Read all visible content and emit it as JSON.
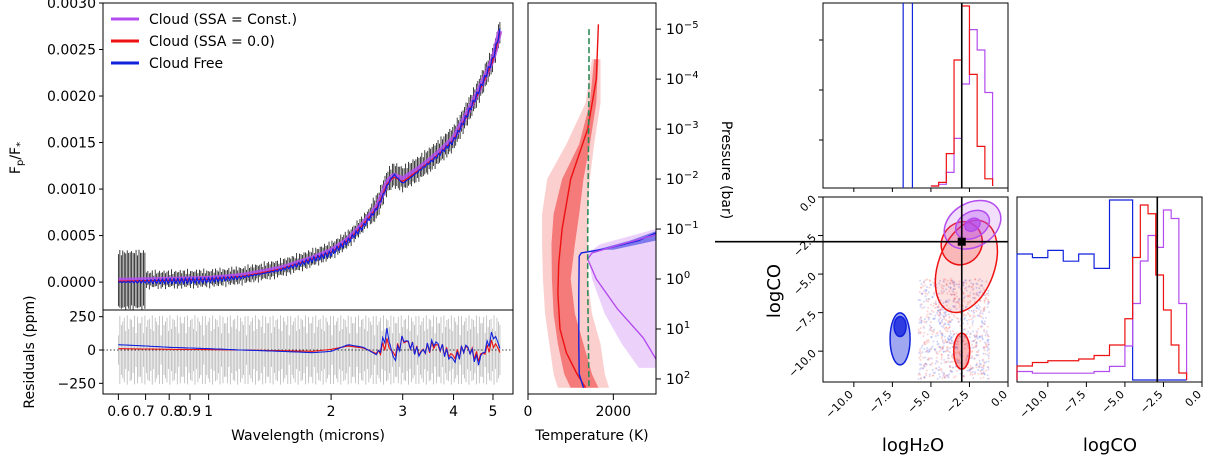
{
  "colors": {
    "ssa_const": "#b44cf0",
    "ssa_zero": "#ee1111",
    "cloud_free": "#1122dd",
    "errorbar": "#111111",
    "resid_err": "#b8b8b8",
    "equilibrium": "#2e8b57"
  },
  "chart_data": [
    {
      "panel": "spectrum",
      "type": "line",
      "xlabel": "Wavelength (microns)",
      "ylabel": "Fp/F*",
      "x_scale": "log",
      "xlim": [
        0.55,
        5.6
      ],
      "ylim": [
        -0.0003,
        0.003
      ],
      "yticks": [
        "0.0000",
        "0.0005",
        "0.0010",
        "0.0015",
        "0.0020",
        "0.0025",
        "0.0030"
      ],
      "x_ticks": [
        "0.6",
        "0.7",
        "0.8",
        "0.9",
        "1",
        "2",
        "3",
        "4",
        "5"
      ],
      "legend": {
        "placement": "upper-left",
        "entries": [
          "Cloud (SSA = Const.)",
          "Cloud (SSA = 0.0)",
          "Cloud Free"
        ]
      },
      "x": [
        0.6,
        0.8,
        1.0,
        1.2,
        1.5,
        1.8,
        2.0,
        2.2,
        2.4,
        2.6,
        2.75,
        2.85,
        3.0,
        3.3,
        3.6,
        4.0,
        4.3,
        4.6,
        5.0,
        5.2
      ],
      "series": [
        {
          "name": "Cloud (SSA = Const.)",
          "values": [
            2e-05,
            3e-05,
            4e-05,
            7e-05,
            0.00015,
            0.00026,
            0.00034,
            0.00046,
            0.00063,
            0.00082,
            0.00108,
            0.00115,
            0.00111,
            0.00123,
            0.00136,
            0.00155,
            0.0018,
            0.00205,
            0.0024,
            0.0027
          ]
        },
        {
          "name": "Cloud (SSA = 0.0)",
          "values": [
            1e-05,
            2e-05,
            3e-05,
            6e-05,
            0.00014,
            0.00025,
            0.00032,
            0.00045,
            0.00062,
            0.00081,
            0.00106,
            0.00113,
            0.00108,
            0.00121,
            0.00134,
            0.00153,
            0.00178,
            0.00203,
            0.00238,
            0.00268
          ]
        },
        {
          "name": "Cloud Free",
          "values": [
            0.0,
            1e-05,
            2e-05,
            5e-05,
            0.00013,
            0.00024,
            0.00031,
            0.00044,
            0.0006,
            0.0008,
            0.00104,
            0.00116,
            0.00106,
            0.0012,
            0.00133,
            0.00152,
            0.00178,
            0.00204,
            0.0024,
            0.0027
          ]
        }
      ]
    },
    {
      "panel": "residuals",
      "type": "line",
      "xlabel": "Wavelength (microns)",
      "ylabel": "Residuals (ppm)",
      "x_scale": "log",
      "ylim": [
        -330,
        320
      ],
      "yticks": [
        "250",
        "0",
        "−250"
      ],
      "x": [
        0.6,
        0.8,
        1.0,
        1.2,
        1.5,
        1.8,
        2.0,
        2.2,
        2.4,
        2.6,
        2.75,
        2.85,
        3.0,
        3.3,
        3.6,
        4.0,
        4.3,
        4.6,
        5.0,
        5.2
      ],
      "series": [
        {
          "name": "Cloud (SSA = 0.0)",
          "values": [
            10,
            5,
            3,
            0,
            -5,
            -10,
            5,
            30,
            15,
            -30,
            60,
            -40,
            80,
            -20,
            40,
            -50,
            20,
            -60,
            50,
            0
          ]
        },
        {
          "name": "Cloud Free",
          "values": [
            40,
            20,
            10,
            0,
            -10,
            -20,
            -10,
            40,
            20,
            -40,
            140,
            -80,
            90,
            -30,
            60,
            -80,
            30,
            -90,
            120,
            30
          ]
        }
      ]
    },
    {
      "panel": "temperature-pressure",
      "type": "line",
      "xlabel": "Temperature (K)",
      "ylabel": "Pressure (bar)",
      "y_scale": "log",
      "y_inverted": true,
      "xlim": [
        0,
        3000
      ],
      "ylim": [
        200,
        3e-06
      ],
      "x_ticks": [
        "0",
        "2000"
      ],
      "y_ticks": [
        "10−5",
        "10−4",
        "10−3",
        "10−2",
        "10−1",
        "100",
        "101",
        "102"
      ],
      "y_tick_values": [
        1e-05,
        0.0001,
        0.001,
        0.01,
        0.1,
        1,
        10,
        100
      ],
      "series": [
        {
          "name": "Cloud (SSA = 0.0)",
          "x": [
            1650,
            1600,
            1400,
            1000,
            800,
            720,
            700,
            750,
            900,
            1150,
            1350
          ],
          "y": [
            8e-06,
            0.0001,
            0.001,
            0.01,
            0.1,
            0.5,
            2,
            10,
            30,
            80,
            150
          ]
        },
        {
          "name": "Cloud Free",
          "x": [
            3000,
            2600,
            1800,
            1250,
            1200,
            1190,
            1190,
            1200,
            1300
          ],
          "y": [
            0.12,
            0.17,
            0.25,
            0.3,
            0.35,
            2,
            20,
            80,
            150
          ]
        },
        {
          "name": "Cloud (SSA = Const.)",
          "x": [
            3000,
            2200,
            1500,
            1400,
            1600,
            2100,
            2700,
            3000
          ],
          "y": [
            0.13,
            0.2,
            0.3,
            0.4,
            1,
            4,
            15,
            40
          ]
        },
        {
          "name": "equilibrium",
          "x": [
            1430,
            1430,
            1420,
            1410,
            1400,
            1400,
            1410,
            1430
          ],
          "y": [
            1e-05,
            0.0001,
            0.001,
            0.01,
            0.1,
            1,
            10,
            150
          ]
        }
      ]
    },
    {
      "panel": "corner",
      "type": "histogram",
      "params": [
        "logH₂O",
        "logCO"
      ],
      "xlabels": [
        "logH₂O",
        "logCO"
      ],
      "ylabel": "logCO",
      "axis_range": [
        -12,
        0
      ],
      "ticks": [
        "−10.0",
        "−7.5",
        "−5.0",
        "−2.5",
        "0.0"
      ],
      "tick_values": [
        -10,
        -7.5,
        -5,
        -2.5,
        0
      ],
      "truth": {
        "logH2O": -3.0,
        "logCO": -2.9
      },
      "hist_h2o": {
        "bins": [
          -5.0,
          -4.5,
          -4.0,
          -3.5,
          -3.0,
          -2.5,
          -2.0,
          -1.5,
          -1.0
        ],
        "ssa_const": [
          0,
          1,
          8,
          28,
          60,
          92,
          80,
          55,
          0
        ],
        "ssa_zero": [
          0,
          2,
          18,
          70,
          100,
          62,
          22,
          4,
          0
        ],
        "cloud_free_line": -6.8,
        "cloud_free_line2": -6.2
      },
      "hist_co": {
        "bins": [
          -12,
          -11,
          -10,
          -9,
          -8,
          -7,
          -6,
          -5,
          -4.5,
          -4,
          -3.5,
          -3,
          -2.5,
          -2,
          -1.5,
          -1
        ],
        "ssa_const": [
          5,
          4,
          4,
          4,
          4,
          5,
          8,
          20,
          45,
          70,
          85,
          78,
          100,
          95,
          45,
          0
        ],
        "ssa_zero": [
          8,
          10,
          11,
          11,
          12,
          14,
          20,
          35,
          70,
          100,
          95,
          60,
          40,
          20,
          4,
          0
        ],
        "cloud_free": [
          70,
          68,
          72,
          66,
          70,
          62,
          100,
          100,
          0,
          0,
          0,
          0,
          0,
          0,
          0,
          0
        ]
      },
      "contours": {
        "ssa_const_center": [
          -2.3,
          -1.8
        ],
        "ssa_zero_center": [
          -3.0,
          -3.0
        ],
        "cloud_free_center": [
          -7.0,
          -8.4
        ]
      }
    }
  ]
}
